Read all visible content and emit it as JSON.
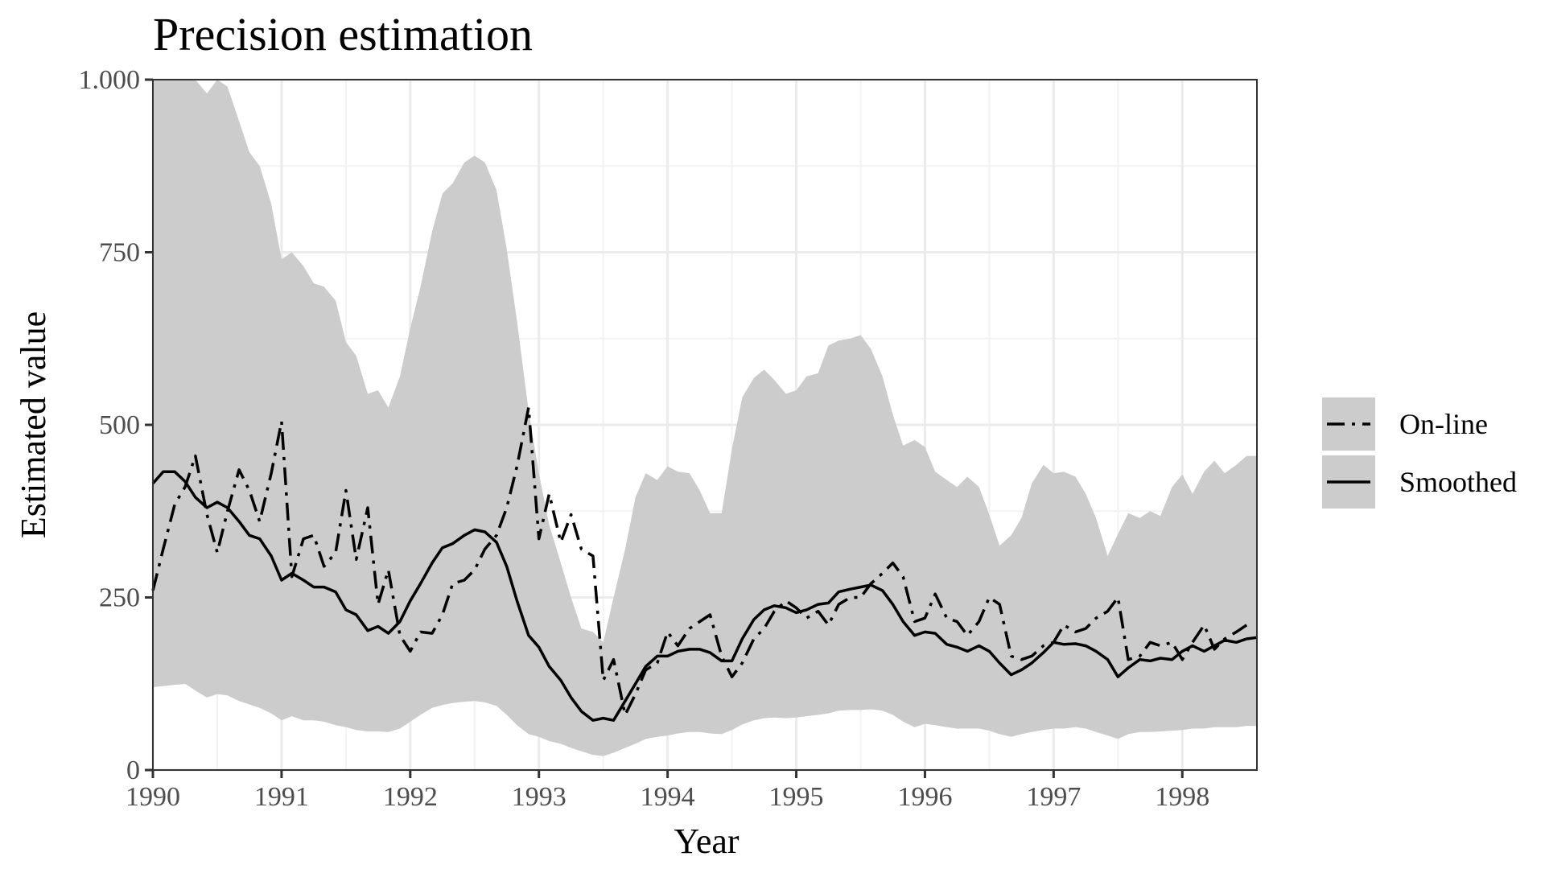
{
  "chart_data": {
    "type": "line",
    "title": "Precision estimation",
    "xlabel": "Year",
    "ylabel": "Estimated value",
    "xlim": [
      1990,
      1998.58
    ],
    "ylim": [
      0,
      1000
    ],
    "x_ticks": [
      1990,
      1991,
      1992,
      1993,
      1994,
      1995,
      1996,
      1997,
      1998
    ],
    "x_tick_labels": [
      "1990",
      "1991",
      "1992",
      "1993",
      "1994",
      "1995",
      "1996",
      "1997",
      "1998"
    ],
    "y_ticks": [
      0,
      250,
      500,
      750,
      1000
    ],
    "y_tick_labels": [
      "0",
      "250",
      "500",
      "750",
      "1.000"
    ],
    "grid": true,
    "legend_position": "right",
    "legend": [
      "On-line",
      "Smoothed"
    ],
    "colors": {
      "band": "#cccccc",
      "line": "#000000",
      "grid_major": "#ebebeb",
      "grid_minor": "#f2f2f2",
      "panel_border": "#333333",
      "tick_text": "#4d4d4d"
    },
    "band": {
      "x": [
        1990,
        1990.25,
        1990.33,
        1990.42,
        1990.5,
        1990.58,
        1990.67,
        1990.75,
        1990.83,
        1990.92,
        1991,
        1991.08,
        1991.17,
        1991.25,
        1991.33,
        1991.42,
        1991.5,
        1991.58,
        1991.67,
        1991.75,
        1991.83,
        1991.92,
        1992,
        1992.08,
        1992.17,
        1992.25,
        1992.33,
        1992.42,
        1992.5,
        1992.58,
        1992.67,
        1992.75,
        1992.83,
        1992.92,
        1993,
        1993.08,
        1993.17,
        1993.25,
        1993.33,
        1993.42,
        1993.5,
        1993.58,
        1993.67,
        1993.75,
        1993.83,
        1993.92,
        1994,
        1994.08,
        1994.17,
        1994.25,
        1994.33,
        1994.42,
        1994.5,
        1994.58,
        1994.67,
        1994.75,
        1994.83,
        1994.92,
        1995,
        1995.08,
        1995.17,
        1995.25,
        1995.33,
        1995.42,
        1995.5,
        1995.58,
        1995.67,
        1995.75,
        1995.83,
        1995.92,
        1996,
        1996.08,
        1996.17,
        1996.25,
        1996.33,
        1996.42,
        1996.5,
        1996.58,
        1996.67,
        1996.75,
        1996.83,
        1996.92,
        1997,
        1997.08,
        1997.17,
        1997.25,
        1997.33,
        1997.42,
        1997.5,
        1997.58,
        1997.67,
        1997.75,
        1997.83,
        1997.92,
        1998,
        1998.08,
        1998.17,
        1998.25,
        1998.33,
        1998.42,
        1998.5,
        1998.58
      ],
      "upper": [
        1000,
        1000,
        1000,
        980,
        1000,
        990,
        940,
        895,
        875,
        820,
        740,
        750,
        730,
        705,
        700,
        680,
        620,
        600,
        545,
        550,
        525,
        570,
        640,
        700,
        780,
        835,
        850,
        880,
        890,
        880,
        840,
        755,
        650,
        520,
        430,
        355,
        300,
        250,
        205,
        200,
        185,
        250,
        320,
        395,
        430,
        420,
        440,
        432,
        430,
        405,
        372,
        372,
        465,
        540,
        568,
        580,
        565,
        545,
        550,
        570,
        575,
        615,
        622,
        625,
        630,
        610,
        570,
        515,
        470,
        478,
        468,
        432,
        420,
        410,
        425,
        410,
        370,
        325,
        340,
        365,
        415,
        442,
        430,
        432,
        425,
        400,
        365,
        310,
        342,
        372,
        365,
        375,
        368,
        410,
        428,
        400,
        432,
        448,
        430,
        442,
        455,
        455
      ],
      "lower": [
        120,
        125,
        115,
        105,
        110,
        108,
        100,
        95,
        90,
        82,
        72,
        78,
        72,
        72,
        70,
        65,
        62,
        58,
        56,
        56,
        55,
        60,
        70,
        80,
        90,
        94,
        97,
        99,
        100,
        98,
        93,
        80,
        65,
        52,
        48,
        42,
        38,
        32,
        27,
        22,
        20,
        25,
        32,
        38,
        45,
        48,
        50,
        53,
        55,
        55,
        53,
        52,
        58,
        66,
        72,
        75,
        76,
        75,
        76,
        78,
        80,
        82,
        86,
        87,
        87,
        88,
        86,
        80,
        70,
        62,
        67,
        65,
        62,
        60,
        60,
        60,
        57,
        52,
        48,
        52,
        55,
        58,
        60,
        60,
        62,
        60,
        55,
        50,
        45,
        52,
        55,
        55,
        56,
        57,
        58,
        60,
        60,
        62,
        62,
        62,
        64,
        64
      ]
    },
    "series": [
      {
        "name": "On-line",
        "line_style": "dashdot",
        "x": [
          1990,
          1990.08,
          1990.17,
          1990.25,
          1990.33,
          1990.42,
          1990.5,
          1990.58,
          1990.67,
          1990.75,
          1990.83,
          1990.92,
          1991,
          1991.08,
          1991.17,
          1991.25,
          1991.33,
          1991.42,
          1991.5,
          1991.58,
          1991.67,
          1991.75,
          1991.83,
          1991.92,
          1992,
          1992.08,
          1992.17,
          1992.25,
          1992.33,
          1992.42,
          1992.5,
          1992.58,
          1992.67,
          1992.75,
          1992.83,
          1992.92,
          1993,
          1993.08,
          1993.17,
          1993.25,
          1993.33,
          1993.42,
          1993.5,
          1993.58,
          1993.67,
          1993.75,
          1993.83,
          1993.92,
          1994,
          1994.08,
          1994.17,
          1994.25,
          1994.33,
          1994.42,
          1994.5,
          1994.58,
          1994.67,
          1994.75,
          1994.83,
          1994.92,
          1995,
          1995.08,
          1995.17,
          1995.25,
          1995.33,
          1995.42,
          1995.5,
          1995.58,
          1995.67,
          1995.75,
          1995.83,
          1995.92,
          1996,
          1996.08,
          1996.17,
          1996.25,
          1996.33,
          1996.42,
          1996.5,
          1996.58,
          1996.67,
          1996.75,
          1996.83,
          1996.92,
          1997,
          1997.08,
          1997.17,
          1997.25,
          1997.33,
          1997.42,
          1997.5,
          1997.58,
          1997.67,
          1997.75,
          1997.83,
          1997.92,
          1998,
          1998.08,
          1998.17,
          1998.25,
          1998.33,
          1998.42,
          1998.5
        ],
        "y": [
          260,
          320,
          385,
          410,
          455,
          370,
          315,
          375,
          435,
          405,
          360,
          430,
          505,
          280,
          335,
          340,
          295,
          315,
          405,
          305,
          380,
          240,
          290,
          195,
          172,
          200,
          198,
          225,
          270,
          275,
          290,
          320,
          340,
          380,
          440,
          525,
          335,
          400,
          330,
          370,
          320,
          310,
          130,
          160,
          80,
          110,
          145,
          155,
          200,
          180,
          205,
          215,
          225,
          165,
          135,
          155,
          190,
          205,
          230,
          245,
          235,
          220,
          230,
          210,
          240,
          250,
          250,
          270,
          285,
          300,
          280,
          215,
          220,
          255,
          220,
          215,
          195,
          215,
          250,
          240,
          165,
          160,
          165,
          180,
          185,
          210,
          200,
          205,
          220,
          230,
          250,
          160,
          165,
          185,
          180,
          185,
          160,
          185,
          210,
          175,
          190,
          200,
          210
        ]
      },
      {
        "name": "Smoothed",
        "line_style": "solid",
        "x": [
          1990,
          1990.08,
          1990.17,
          1990.25,
          1990.33,
          1990.42,
          1990.5,
          1990.58,
          1990.67,
          1990.75,
          1990.83,
          1990.92,
          1991,
          1991.08,
          1991.17,
          1991.25,
          1991.33,
          1991.42,
          1991.5,
          1991.58,
          1991.67,
          1991.75,
          1991.83,
          1991.92,
          1992,
          1992.08,
          1992.17,
          1992.25,
          1992.33,
          1992.42,
          1992.5,
          1992.58,
          1992.67,
          1992.75,
          1992.83,
          1992.92,
          1993,
          1993.08,
          1993.17,
          1993.25,
          1993.33,
          1993.42,
          1993.5,
          1993.58,
          1993.67,
          1993.75,
          1993.83,
          1993.92,
          1994,
          1994.08,
          1994.17,
          1994.25,
          1994.33,
          1994.42,
          1994.5,
          1994.58,
          1994.67,
          1994.75,
          1994.83,
          1994.92,
          1995,
          1995.08,
          1995.17,
          1995.25,
          1995.33,
          1995.42,
          1995.5,
          1995.58,
          1995.67,
          1995.75,
          1995.83,
          1995.92,
          1996,
          1996.08,
          1996.17,
          1996.25,
          1996.33,
          1996.42,
          1996.5,
          1996.58,
          1996.67,
          1996.75,
          1996.83,
          1996.92,
          1997,
          1997.08,
          1997.17,
          1997.25,
          1997.33,
          1997.42,
          1997.5,
          1997.58,
          1997.67,
          1997.75,
          1997.83,
          1997.92,
          1998,
          1998.08,
          1998.17,
          1998.25,
          1998.33,
          1998.42,
          1998.5,
          1998.58
        ],
        "y": [
          415,
          432,
          432,
          418,
          395,
          380,
          388,
          380,
          360,
          340,
          335,
          310,
          275,
          285,
          275,
          265,
          265,
          258,
          232,
          225,
          202,
          208,
          198,
          215,
          245,
          270,
          300,
          322,
          328,
          340,
          348,
          345,
          330,
          295,
          245,
          195,
          178,
          150,
          130,
          105,
          85,
          72,
          75,
          72,
          100,
          125,
          150,
          165,
          165,
          172,
          175,
          175,
          170,
          158,
          158,
          190,
          218,
          232,
          238,
          235,
          228,
          232,
          240,
          242,
          258,
          262,
          265,
          268,
          260,
          240,
          215,
          195,
          200,
          198,
          182,
          178,
          172,
          180,
          172,
          155,
          138,
          145,
          155,
          170,
          185,
          182,
          183,
          180,
          172,
          160,
          135,
          148,
          160,
          158,
          162,
          160,
          172,
          180,
          172,
          180,
          188,
          185,
          190,
          192
        ]
      }
    ]
  }
}
